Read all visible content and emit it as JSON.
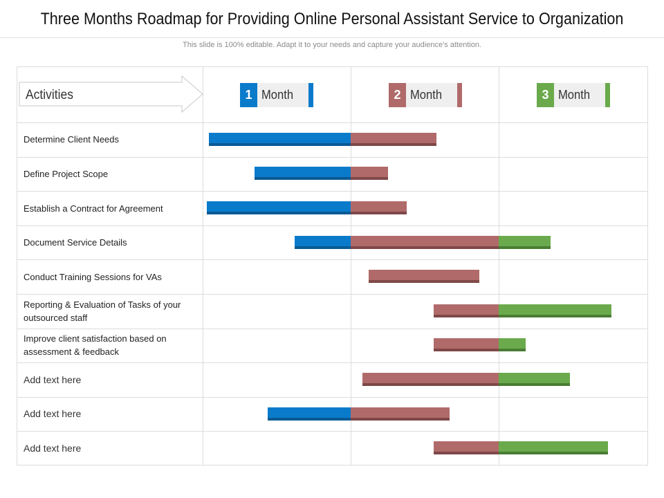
{
  "header": {
    "title": "Three Months Roadmap for Providing Online Personal Assistant Service to Organization",
    "subtitle": "This slide is 100% editable. Adapt it to your needs and capture your audience's attention."
  },
  "activities_label": "Activities",
  "months": [
    {
      "number": "1",
      "label": "Month",
      "color": "#0a7bcb"
    },
    {
      "number": "2",
      "label": "Month",
      "color": "#b06a6a"
    },
    {
      "number": "3",
      "label": "Month",
      "color": "#6aaa4c"
    }
  ],
  "colors": {
    "month1": "#0a7bcb",
    "month2": "#b06a6a",
    "month3": "#6aaa4c"
  },
  "tasks": [
    {
      "label": "Determine Client Needs",
      "start_month": 0.04,
      "end_month": 1.58
    },
    {
      "label": "Define Project Scope",
      "start_month": 0.35,
      "end_month": 1.25
    },
    {
      "label": "Establish a Contract for Agreement",
      "start_month": 0.03,
      "end_month": 1.38
    },
    {
      "label": "Document Service Details",
      "start_month": 0.62,
      "end_month": 2.35
    },
    {
      "label": "Conduct Training Sessions for VAs",
      "start_month": 1.12,
      "end_month": 1.87
    },
    {
      "label": "Reporting & Evaluation of Tasks of your outsourced staff",
      "start_month": 1.56,
      "end_month": 2.76
    },
    {
      "label": "Improve  client satisfaction based on assessment & feedback",
      "start_month": 1.56,
      "end_month": 2.18
    },
    {
      "label": "Add text here",
      "start_month": 1.08,
      "end_month": 2.48
    },
    {
      "label": "Add text here",
      "start_month": 0.44,
      "end_month": 1.67
    },
    {
      "label": "Add text here",
      "start_month": 1.56,
      "end_month": 2.74
    }
  ]
}
